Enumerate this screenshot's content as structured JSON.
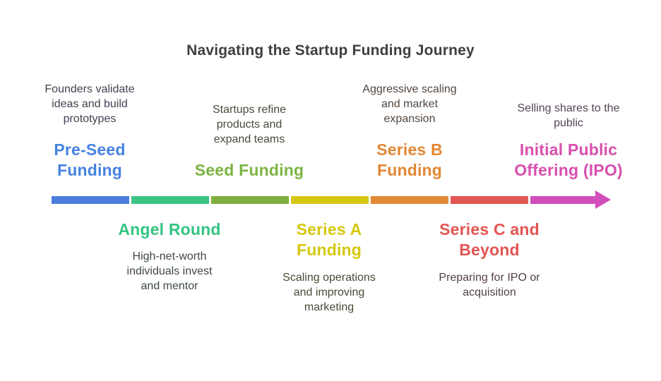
{
  "title": {
    "text": "Navigating the Startup Funding Journey",
    "color": "#3f3f3f"
  },
  "timeline": {
    "arrow_color": "#d14ebb",
    "segments": [
      {
        "name": "pre-seed-segment",
        "color": "#4b7edc"
      },
      {
        "name": "angel-segment",
        "color": "#3bc584"
      },
      {
        "name": "seed-segment",
        "color": "#7eae3e"
      },
      {
        "name": "series-a-segment",
        "color": "#d6c713"
      },
      {
        "name": "series-b-segment",
        "color": "#e08a36"
      },
      {
        "name": "series-c-segment",
        "color": "#e25653"
      },
      {
        "name": "ipo-segment",
        "color": "#d14ebb"
      }
    ]
  },
  "stages": [
    {
      "id": "pre-seed",
      "side": "above",
      "heading": "Pre-Seed\nFunding",
      "heading_color": "#4682e2",
      "description": "Founders validate\nideas and build\nprototypes",
      "description_color": "#3e4450"
    },
    {
      "id": "seed",
      "side": "above",
      "heading": "Seed Funding",
      "heading_color": "#7cb342",
      "description": "Startups refine\nproducts and\nexpand teams",
      "description_color": "#474c3b"
    },
    {
      "id": "series-b",
      "side": "above",
      "heading": "Series B\nFunding",
      "heading_color": "#e28733",
      "description": "Aggressive scaling\nand market\nexpansion",
      "description_color": "#52463e"
    },
    {
      "id": "ipo",
      "side": "above",
      "heading": "Initial Public\nOffering (IPO)",
      "heading_color": "#d84fae",
      "description": "Selling shares to the\npublic",
      "description_color": "#554455"
    },
    {
      "id": "angel",
      "side": "below",
      "heading": "Angel Round",
      "heading_color": "#33c481",
      "description": "High-net-worth\nindividuals invest\nand mentor",
      "description_color": "#3e4a42"
    },
    {
      "id": "series-a",
      "side": "below",
      "heading": "Series A\nFunding",
      "heading_color": "#d6c80e",
      "description": "Scaling operations\nand improving\nmarketing",
      "description_color": "#4a4936"
    },
    {
      "id": "series-c",
      "side": "below",
      "heading": "Series C and\nBeyond",
      "heading_color": "#e25551",
      "description": "Preparing for IPO or\nacquisition",
      "description_color": "#544041"
    }
  ]
}
